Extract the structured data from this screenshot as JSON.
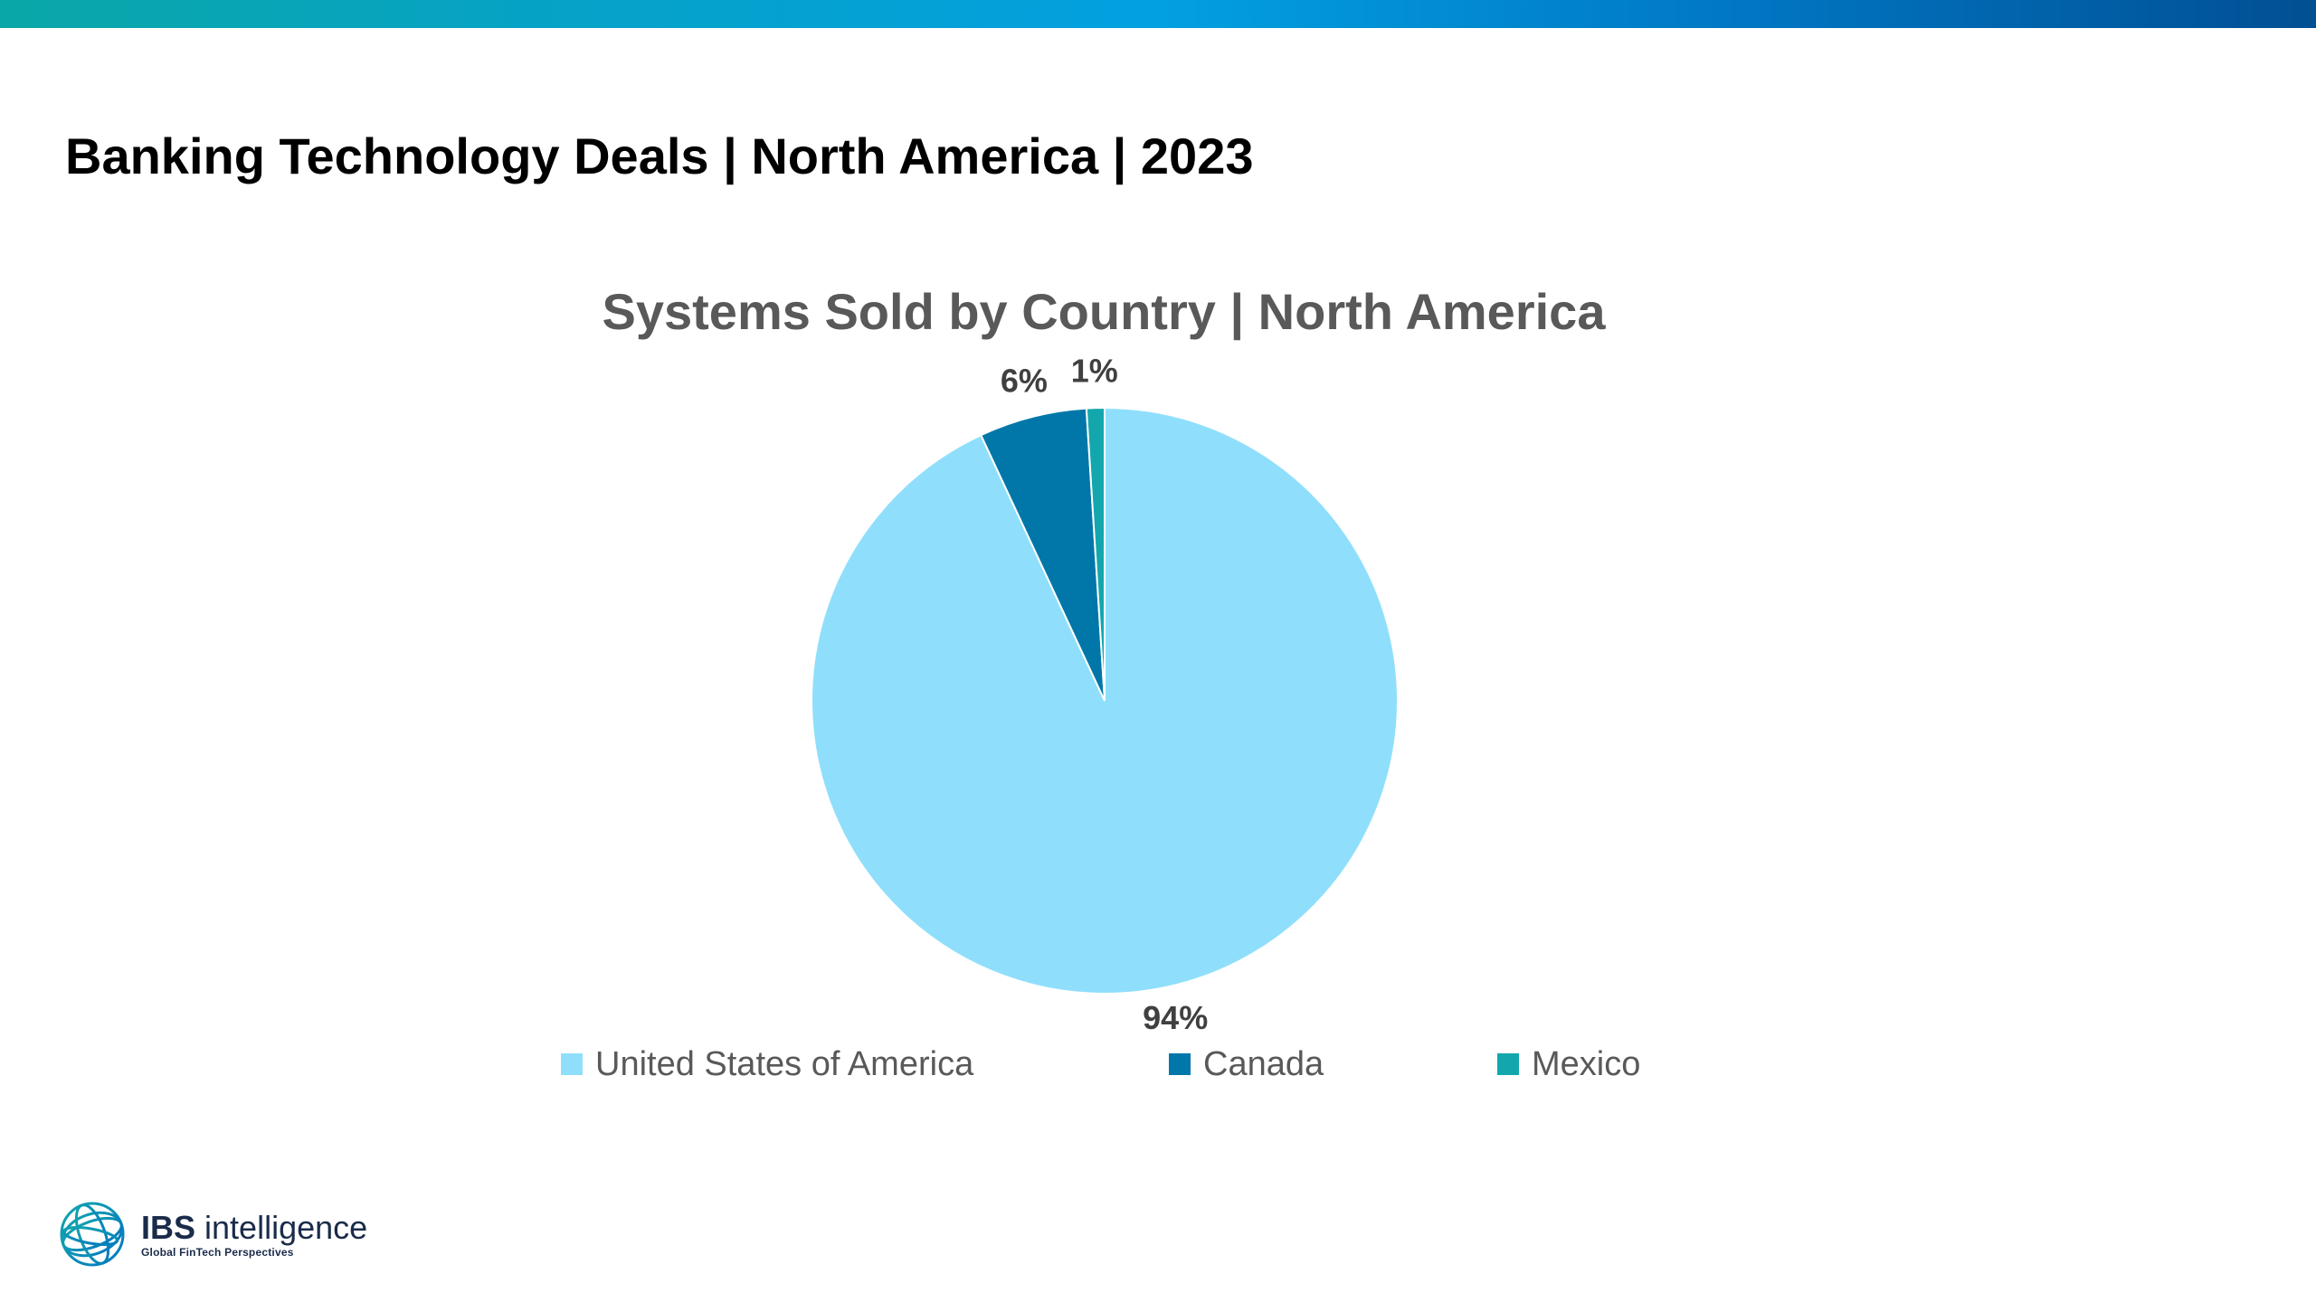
{
  "header": {
    "title": "Banking Technology Deals | North America | 2023"
  },
  "logo": {
    "brand": "IBS",
    "name": "intelligence",
    "tagline": "Global FinTech Perspectives"
  },
  "colors": {
    "usa": "#8fdffc",
    "canada": "#0077a8",
    "mexico": "#13a7ad"
  },
  "chart_data": {
    "type": "pie",
    "title": "Systems Sold by Country | North America",
    "categories": [
      "United States of America",
      "Canada",
      "Mexico"
    ],
    "values": [
      94,
      6,
      1
    ],
    "labels": [
      "94%",
      "6%",
      "1%"
    ],
    "colors": [
      "#8fdffc",
      "#0077a8",
      "#13a7ad"
    ],
    "legend_position": "bottom",
    "start_angle_deg": 0,
    "direction": "clockwise"
  }
}
